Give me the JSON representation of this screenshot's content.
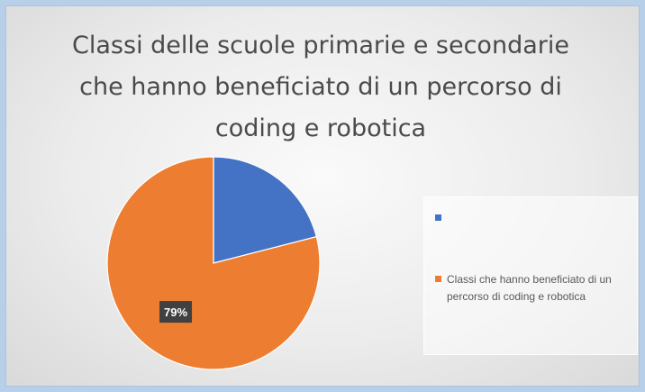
{
  "chart_data": {
    "type": "pie",
    "title": "Classi delle scuole primarie e secondarie che hanno beneficiato di un percorso di coding e robotica",
    "slices": [
      {
        "label": "",
        "value": 21,
        "color": "#4472c4"
      },
      {
        "label": "Classi che hanno beneficiato di un percorso di coding e robotica",
        "value": 79,
        "color": "#ed7d31"
      }
    ],
    "data_labels": [
      "",
      "79%"
    ],
    "legend_position": "right"
  }
}
